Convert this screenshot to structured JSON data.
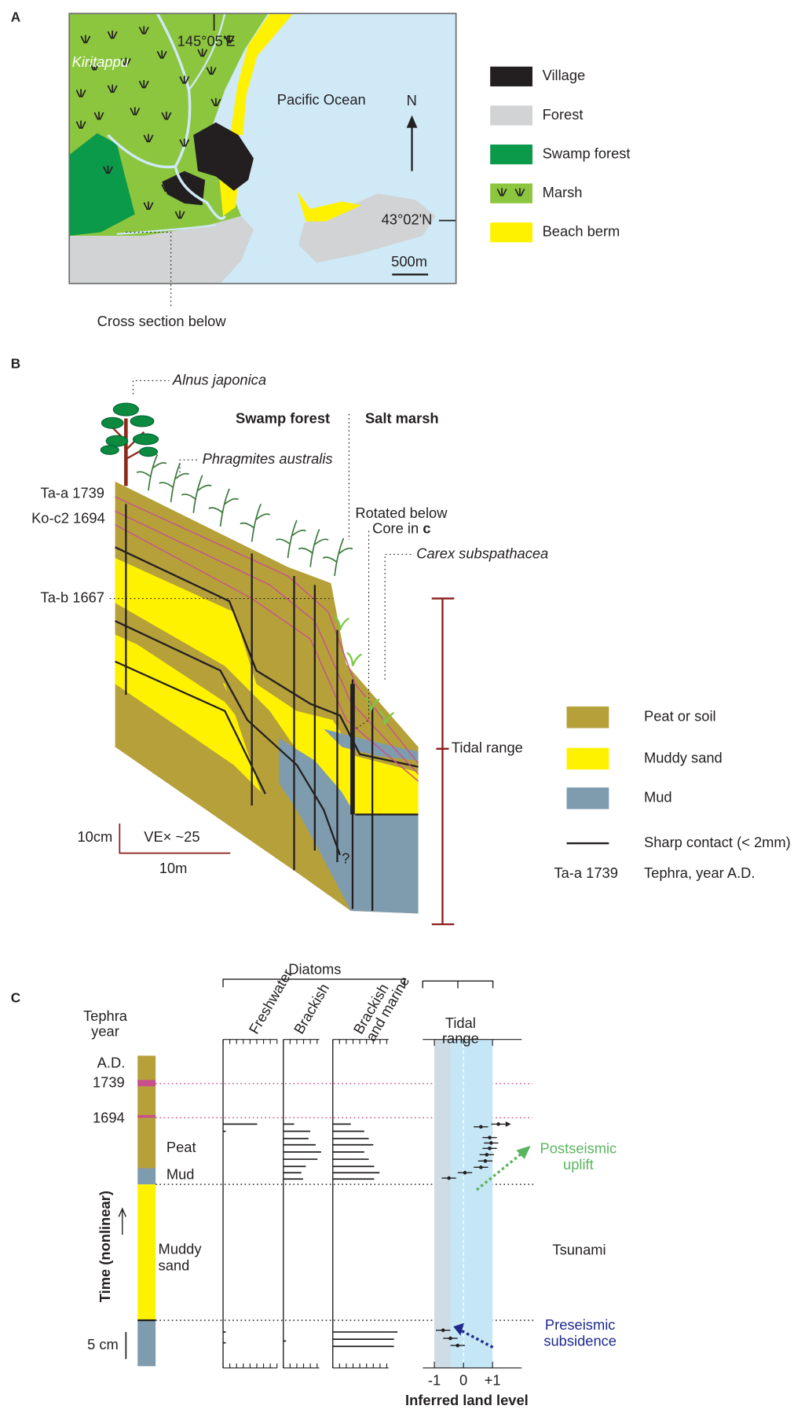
{
  "panel_a": {
    "label": "A",
    "map_labels": {
      "longitude": "145°05'E",
      "place": "Kiritappu",
      "ocean": "Pacific Ocean",
      "north": "N",
      "latitude": "43°02'N",
      "scale": "500m"
    },
    "callout": "Cross section below",
    "legend": [
      {
        "label": "Village",
        "color": "#231f20"
      },
      {
        "label": "Forest",
        "color": "#d1d3d4"
      },
      {
        "label": "Swamp forest",
        "color": "#0b9a4a"
      },
      {
        "label": "Marsh",
        "color": "#8cc63f"
      },
      {
        "label": "Beach berm",
        "color": "#fff200"
      }
    ]
  },
  "panel_b": {
    "label": "B",
    "plants": {
      "tree": "Alnus japonica",
      "reed": "Phragmites australis",
      "sedge": "Carex subspathacea"
    },
    "zones": [
      "Swamp forest",
      "Salt marsh"
    ],
    "tephra_labels": [
      "Ta-a 1739",
      "Ko-c2 1694",
      "Ta-b 1667"
    ],
    "core_labels": [
      "Rotated below",
      "Core in c"
    ],
    "tidal_range": "Tidal range",
    "question": "?",
    "scale": {
      "vertical": "10cm",
      "exaggeration": "VE× ~25",
      "horizontal": "10m"
    },
    "legend": [
      {
        "label": "Peat or soil",
        "color": "#b5a03a"
      },
      {
        "label": "Muddy sand",
        "color": "#fff200"
      },
      {
        "label": "Mud",
        "color": "#7f9caf"
      },
      {
        "label": "Sharp contact (< 2mm)",
        "color": "#231f20"
      }
    ],
    "tephra_legend": {
      "sample": "Ta-a 1739",
      "label": "Tephra, year A.D."
    }
  },
  "panel_c": {
    "label": "C",
    "tephra_title": "Tephra year",
    "years": [
      "A.D.",
      "1739",
      "1694"
    ],
    "units": [
      "Peat",
      "Mud",
      "Muddy sand"
    ],
    "scale": "5 cm",
    "time_axis": "Time (nonlinear)",
    "diatoms": "Diatoms",
    "diatom_columns": [
      "Freshwater",
      "Brackish",
      "Brackish and marine"
    ],
    "tidal_range": "Tidal range",
    "annotations": [
      {
        "text": "Postseismic uplift",
        "color": "#5ab55e"
      },
      {
        "text": "Tsunami",
        "color": "#231f20"
      },
      {
        "text": "Preseismic subsidence",
        "color": "#1f2a8c"
      }
    ],
    "land_level": {
      "xlabel": "Inferred land level",
      "xlim": [
        -1.4,
        2
      ],
      "xticks": [
        {
          "value": -1,
          "label": "-1"
        },
        0,
        {
          "value": 1,
          "label": "+1"
        }
      ],
      "values": [
        1.2,
        0.6,
        0.9,
        0.95,
        0.9,
        0.8,
        0.75,
        0.6,
        0.05,
        -0.5,
        -0.7,
        -0.45,
        -0.2
      ]
    }
  }
}
